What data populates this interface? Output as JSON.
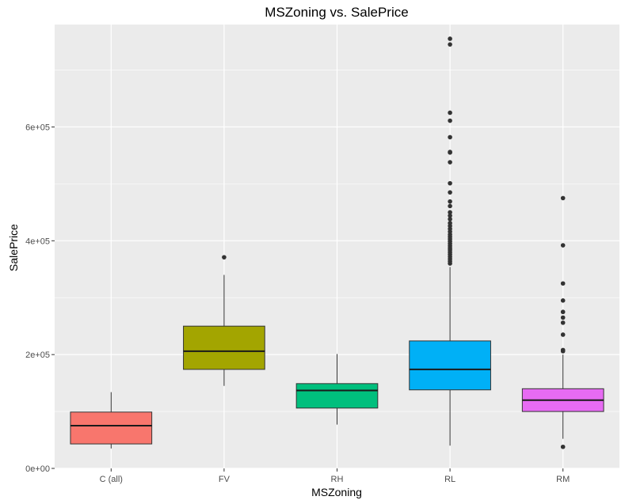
{
  "chart_data": {
    "type": "box",
    "title": "MSZoning vs. SalePrice",
    "xlabel": "MSZoning",
    "ylabel": "SalePrice",
    "ylim": [
      0,
      780000
    ],
    "y_ticks": [
      0,
      200000,
      400000,
      600000
    ],
    "y_tick_labels": [
      "0e+00",
      "2e+05",
      "4e+05",
      "6e+05"
    ],
    "grid": true,
    "legend": "none",
    "panel_background": "#EBEBEB",
    "categories": [
      "C (all)",
      "FV",
      "RH",
      "RL",
      "RM"
    ],
    "boxes": [
      {
        "category": "C (all)",
        "color": "#F8766D",
        "whisker_low": 35000,
        "q1": 43000,
        "median": 75000,
        "q3": 99000,
        "whisker_high": 134000,
        "outliers": []
      },
      {
        "category": "FV",
        "color": "#A3A500",
        "whisker_low": 145000,
        "q1": 174000,
        "median": 206000,
        "q3": 250000,
        "whisker_high": 340000,
        "outliers": [
          371000
        ]
      },
      {
        "category": "RH",
        "color": "#00BF7D",
        "whisker_low": 77000,
        "q1": 106000,
        "median": 137000,
        "q3": 149000,
        "whisker_high": 201000,
        "outliers": []
      },
      {
        "category": "RL",
        "color": "#00B0F6",
        "whisker_low": 40000,
        "q1": 138000,
        "median": 174000,
        "q3": 224000,
        "whisker_high": 354000,
        "outliers": [
          360000,
          364000,
          368000,
          372000,
          376000,
          380000,
          384000,
          387000,
          391000,
          395000,
          399000,
          403000,
          407000,
          411000,
          416000,
          421000,
          426000,
          431000,
          438000,
          444000,
          450000,
          461000,
          469000,
          485000,
          501000,
          538000,
          555000,
          556000,
          582000,
          611000,
          625000,
          745000,
          755000
        ]
      },
      {
        "category": "RM",
        "color": "#E76BF3",
        "whisker_low": 52000,
        "q1": 100000,
        "median": 120000,
        "q3": 140000,
        "whisker_high": 200000,
        "outliers": [
          37900,
          206000,
          208000,
          235000,
          256000,
          265000,
          275000,
          295000,
          325000,
          392000,
          475000
        ]
      }
    ]
  }
}
